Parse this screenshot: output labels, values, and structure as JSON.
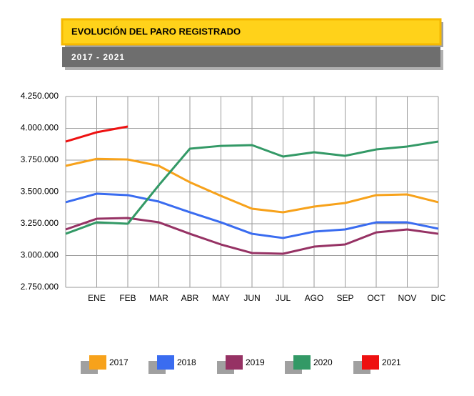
{
  "chart_data": {
    "type": "line",
    "title": "EVOLUCIÓN DEL PARO REGISTRADO",
    "subtitle": "2017 - 2021",
    "categories": [
      null,
      "ENE",
      "FEB",
      "MAR",
      "ABR",
      "MAY",
      "JUN",
      "JUL",
      "AGO",
      "SEP",
      "OCT",
      "NOV",
      "DIC"
    ],
    "series": [
      {
        "name": "2017",
        "color": "#f7a21b",
        "values": [
          3705000,
          3760000,
          3755000,
          3705000,
          3576000,
          3469000,
          3368000,
          3340000,
          3385000,
          3413000,
          3475000,
          3480000,
          3419000
        ]
      },
      {
        "name": "2018",
        "color": "#3a6cf0",
        "values": [
          3419000,
          3486000,
          3475000,
          3424000,
          3340000,
          3261000,
          3171000,
          3138000,
          3188000,
          3205000,
          3261000,
          3261000,
          3211000
        ]
      },
      {
        "name": "2019",
        "color": "#963264",
        "values": [
          3205000,
          3289000,
          3295000,
          3261000,
          3171000,
          3087000,
          3020000,
          3014000,
          3070000,
          3087000,
          3182000,
          3205000,
          3171000
        ]
      },
      {
        "name": "2020",
        "color": "#339966",
        "values": [
          3171000,
          3261000,
          3250000,
          3553000,
          3840000,
          3862000,
          3868000,
          3778000,
          3812000,
          3784000,
          3834000,
          3857000,
          3896000
        ]
      },
      {
        "name": "2021",
        "color": "#ee1111",
        "values": [
          3896000,
          3969000,
          4014000,
          null,
          null,
          null,
          null,
          null,
          null,
          null,
          null,
          null,
          null
        ]
      }
    ],
    "ylim": [
      2750000,
      4250000
    ],
    "yticks": [
      {
        "value": 2750000,
        "label": "2.750.000"
      },
      {
        "value": 3000000,
        "label": "3.000.000"
      },
      {
        "value": 3250000,
        "label": "3.250.000"
      },
      {
        "value": 3500000,
        "label": "3.500.000"
      },
      {
        "value": 3750000,
        "label": "3.750.000"
      },
      {
        "value": 4000000,
        "label": "4.000.000"
      },
      {
        "value": 4250000,
        "label": "4.250.000"
      }
    ],
    "grid": true
  }
}
